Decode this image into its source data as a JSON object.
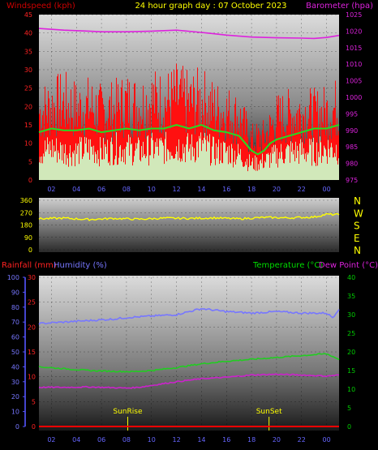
{
  "header": {
    "windspeed_label": "Windspeed (kph)",
    "title": "24 hour graph day : 07 October 2023",
    "barometer_label": "Barometer (hpa)"
  },
  "lower_header": {
    "rainfall_label": "Rainfall (mm)",
    "humidity_label": "Humidity (%)",
    "temperature_label": "Temperature (°C)",
    "dewpoint_label": "Dew Point (°C)"
  },
  "colors": {
    "windspeed": "#ff1010",
    "windspeed_avg": "#22dd22",
    "gust": "#ccffcc",
    "barometer": "#dd22dd",
    "direction": "#ffff00",
    "temperature": "#22cc22",
    "dewpoint": "#cc22cc",
    "humidity": "#7777ff",
    "rainfall": "#ff0000",
    "title": "#ffff00",
    "axis_labels_blue": "#6666ff",
    "axis_labels_green": "#00cc00"
  },
  "chart_data": [
    {
      "type": "line",
      "name": "wind-barometer",
      "xlim": [
        1,
        25
      ],
      "x_ticks": [
        "02",
        "04",
        "06",
        "08",
        "10",
        "12",
        "14",
        "16",
        "18",
        "20",
        "22",
        "00"
      ],
      "y_left": {
        "label": "Windspeed (kph)",
        "lim": [
          0,
          45
        ],
        "ticks": [
          "0",
          "5",
          "10",
          "15",
          "20",
          "25",
          "30",
          "35",
          "40",
          "45"
        ]
      },
      "y_right": {
        "label": "Barometer (hpa)",
        "lim": [
          975,
          1025
        ],
        "ticks": [
          "975",
          "980",
          "985",
          "990",
          "995",
          "1000",
          "1005",
          "1010",
          "1015",
          "1020",
          "1025"
        ]
      },
      "series": [
        {
          "axis": "right",
          "x": [
            1,
            3,
            5,
            6,
            8,
            10,
            12,
            14,
            16,
            18,
            20,
            22,
            23,
            24,
            25
          ],
          "values": [
            1020.8,
            1020.3,
            1020,
            1019.8,
            1019.8,
            1020,
            1020.3,
            1019.6,
            1018.8,
            1018.2,
            1018,
            1017.9,
            1017.8,
            1018.1,
            1018.7
          ]
        },
        {
          "axis": "left",
          "x": [
            1,
            2,
            3,
            4,
            5,
            6,
            7,
            8,
            9,
            10,
            11,
            12,
            13,
            14,
            15,
            16,
            17,
            17.5,
            18,
            18.5,
            19,
            19.5,
            20,
            21,
            22,
            23,
            24,
            25
          ],
          "values": [
            13,
            14,
            13.5,
            13.5,
            14,
            13,
            13.5,
            14,
            13.5,
            14,
            14,
            15,
            14,
            15,
            13.5,
            13,
            12,
            10,
            8,
            7,
            8,
            10,
            11,
            12,
            13,
            14,
            14,
            15
          ]
        },
        {
          "axis": "left",
          "x": [
            1,
            2,
            3,
            4,
            5,
            6,
            7,
            8,
            9,
            10,
            11,
            12,
            13,
            14,
            15,
            16,
            17,
            18,
            19,
            20,
            21,
            22,
            23,
            24,
            25
          ],
          "values": [
            22,
            24,
            25,
            23,
            24,
            22,
            23,
            25,
            24,
            26,
            25,
            27,
            25,
            26,
            23,
            22,
            20,
            13,
            14,
            20,
            21,
            22,
            21,
            22,
            24
          ]
        },
        {
          "axis": "left",
          "x": [
            1,
            2,
            3,
            4,
            5,
            6,
            7,
            8,
            9,
            10,
            11,
            12,
            13,
            14,
            15,
            16,
            17,
            18,
            19,
            20,
            21,
            22,
            23,
            24,
            25
          ],
          "values": [
            9,
            10,
            9,
            9,
            10,
            9,
            10,
            10,
            9,
            10,
            10,
            11,
            10,
            11,
            9,
            9,
            8,
            5,
            6,
            8,
            9,
            9,
            9,
            10,
            10
          ]
        }
      ]
    },
    {
      "type": "line",
      "name": "wind-direction",
      "xlim": [
        1,
        25
      ],
      "compass": [
        "N",
        "W",
        "S",
        "E",
        "N"
      ],
      "y_left": {
        "lim": [
          0,
          360
        ],
        "ticks": [
          "0",
          "90",
          "180",
          "270",
          "360"
        ]
      },
      "series": [
        {
          "x": [
            1,
            3,
            5,
            7,
            9,
            11,
            13,
            15,
            17,
            19,
            21,
            23,
            24,
            25
          ],
          "values": [
            225,
            230,
            220,
            228,
            222,
            230,
            228,
            232,
            225,
            235,
            232,
            238,
            258,
            255
          ]
        }
      ]
    },
    {
      "type": "line",
      "name": "temperature-humidity-rain",
      "xlim": [
        1,
        25
      ],
      "x_ticks": [
        "02",
        "04",
        "06",
        "08",
        "10",
        "12",
        "14",
        "16",
        "18",
        "20",
        "22",
        "00"
      ],
      "y_humidity": {
        "lim": [
          0,
          100
        ],
        "ticks": [
          "0",
          "10",
          "20",
          "30",
          "40",
          "50",
          "60",
          "70",
          "80",
          "90",
          "100"
        ]
      },
      "y_rain": {
        "lim": [
          0,
          30
        ],
        "ticks": [
          "0",
          "5",
          "10",
          "15",
          "20",
          "25",
          "30"
        ]
      },
      "y_temp": {
        "lim": [
          0,
          40
        ],
        "ticks": [
          "0",
          "5",
          "10",
          "15",
          "20",
          "25",
          "30",
          "35",
          "40"
        ]
      },
      "annotations": [
        {
          "text": "SunRise",
          "x": 8.1
        },
        {
          "text": "SunSet",
          "x": 19.4
        }
      ],
      "series": [
        {
          "axis": "humidity",
          "x": [
            1,
            3,
            5,
            7,
            8,
            10,
            12,
            14,
            16,
            18,
            20,
            22,
            24,
            24.5,
            25
          ],
          "values": [
            69,
            70,
            71,
            72,
            73,
            74,
            75,
            79,
            77,
            76,
            77,
            76,
            76,
            73,
            79
          ]
        },
        {
          "axis": "temp",
          "x": [
            1,
            3,
            5,
            7,
            8.5,
            10,
            12,
            14,
            16,
            18,
            20,
            22,
            24,
            25
          ],
          "values": [
            16,
            15.5,
            15,
            14.8,
            14.7,
            15,
            15.8,
            16.8,
            17.5,
            18,
            18.5,
            19,
            19.5,
            18
          ]
        },
        {
          "axis": "temp",
          "x": [
            1,
            3,
            5,
            7,
            8,
            9,
            10,
            12,
            14,
            16,
            18,
            20,
            22,
            24,
            25
          ],
          "values": [
            10.5,
            10.5,
            10.6,
            10.4,
            10.3,
            10.5,
            11,
            12,
            12.8,
            13.2,
            13.8,
            14,
            13.8,
            13.5,
            13.8
          ]
        },
        {
          "axis": "rain",
          "x": [
            1,
            25
          ],
          "values": [
            0,
            0
          ]
        }
      ]
    }
  ]
}
